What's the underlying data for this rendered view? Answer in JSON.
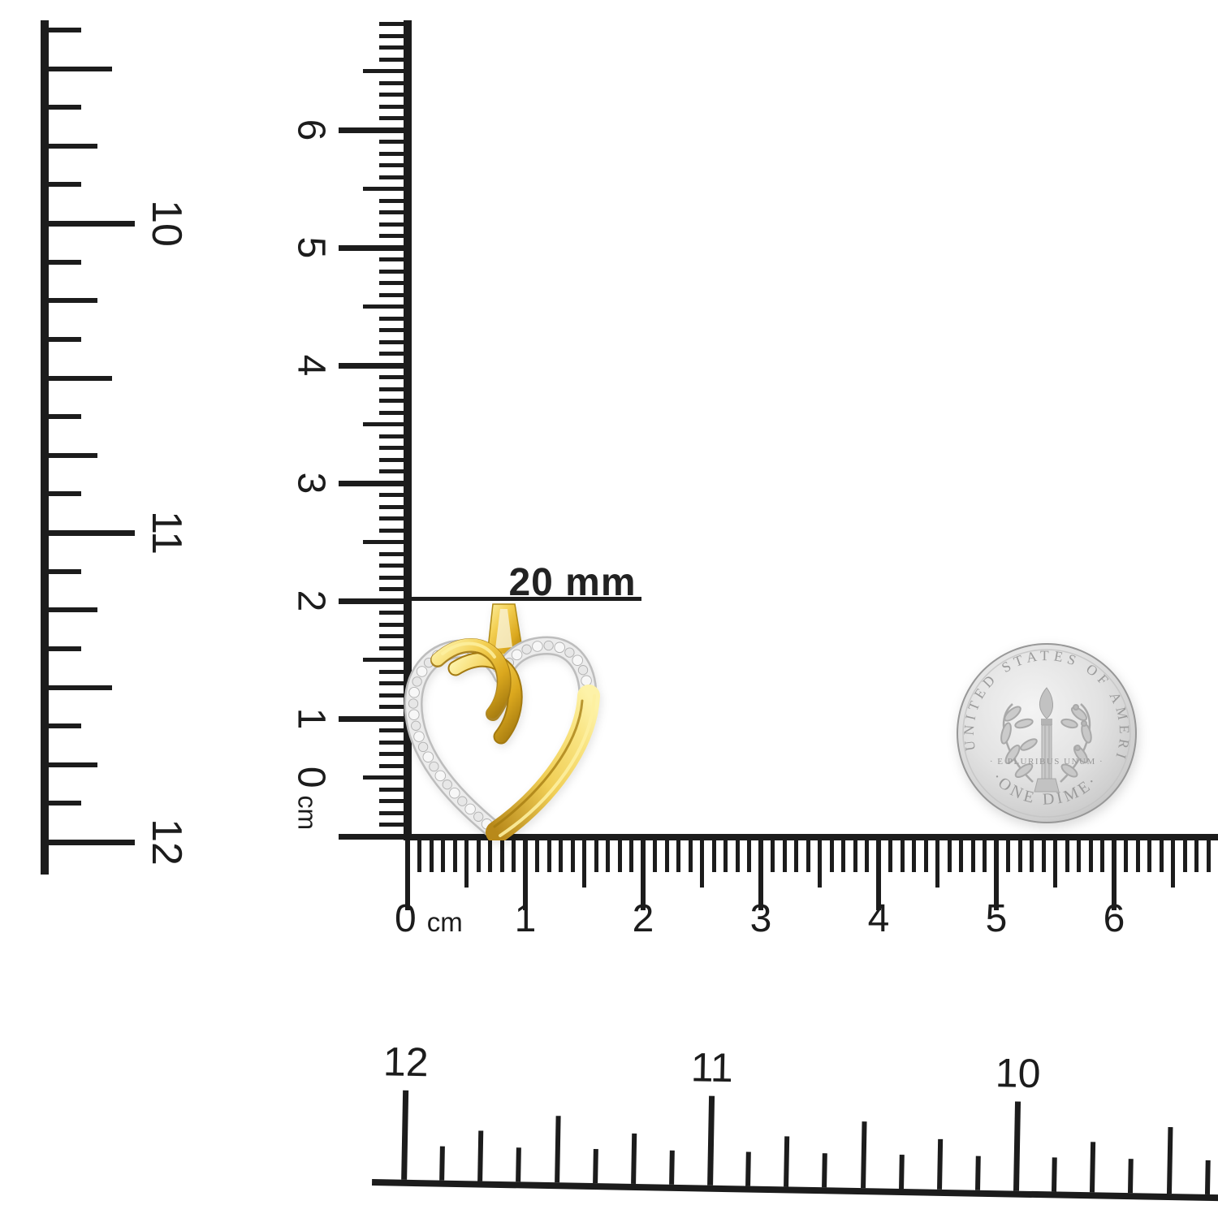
{
  "annotation": {
    "label": "20 mm"
  },
  "rulers": {
    "left_inch": {
      "labels": [
        "10",
        "11",
        "12"
      ]
    },
    "vertical_cm": {
      "labels": [
        "6",
        "5",
        "4",
        "3",
        "2",
        "1",
        "0"
      ],
      "unit": "cm"
    },
    "horizontal_cm": {
      "labels": [
        "0",
        "1",
        "2",
        "3",
        "4",
        "5",
        "6"
      ],
      "unit": "cm"
    },
    "bottom_inch": {
      "labels": [
        "12",
        "11",
        "10"
      ]
    }
  },
  "coin": {
    "top_text": "UNITED STATES OF AMERICA",
    "middle_text": "· E PLURIBUS UNUM ·",
    "bottom_text": "·ONE DIME·",
    "silver_color": "#d2d2d2"
  },
  "pendant": {
    "gold_color": "#dba81e",
    "gold_highlight": "#fdf2a8",
    "gold_shadow": "#a3790f",
    "diamond_color": "#f0f0f0"
  },
  "colors": {
    "ink": "#1c1c1c",
    "background": "#ffffff"
  }
}
